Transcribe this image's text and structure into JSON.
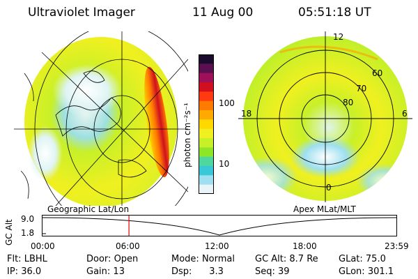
{
  "header": {
    "instrument": "Ultraviolet Imager",
    "date": "11 Aug 00",
    "time": "05:51:18 UT"
  },
  "colorbar": {
    "unit_label": "photon cm⁻²s⁻¹",
    "tick_100": "100",
    "tick_10": "10",
    "colors": [
      "#1a0a2e",
      "#5a1050",
      "#a0105a",
      "#d01020",
      "#ff3a10",
      "#ff7a00",
      "#ffaa00",
      "#ffd800",
      "#f0f020",
      "#c8f028",
      "#8ee628",
      "#4ed8a0",
      "#38c8d8",
      "#9ee0f0",
      "#e8f4f8"
    ]
  },
  "panels": {
    "left_label": "Geographic Lat/Lon",
    "right_label": "Apex MLat/MLT",
    "mlt": {
      "top": "12",
      "left": "18",
      "right": "6",
      "bottom": "0"
    },
    "mlat": {
      "l60": "60",
      "l70": "70",
      "l80": "80"
    }
  },
  "altitude_plot": {
    "ylabel": "GC Alt",
    "y_top": "9.0",
    "y_bottom": "1.8",
    "x_ticks": [
      "00:00",
      "06:00",
      "12:00",
      "18:00",
      "23:59"
    ],
    "marker_time_fraction": 0.2443
  },
  "status": {
    "filter_label": "Flt:",
    "filter_value": "LBHL",
    "door_label": "Door:",
    "door_value": "Open",
    "mode_label": "Mode:",
    "mode_value": "Normal",
    "gcalt_label": "GC Alt:",
    "gcalt_value": "8.7 Re",
    "glat_label": "GLat:",
    "glat_value": "75.0",
    "ip_label": "IP:",
    "ip_value": "36.0",
    "gain_label": "Gain:",
    "gain_value": "13",
    "dsp_label": "Dsp:",
    "dsp_value": "3.3",
    "seq_label": "Seq:",
    "seq_value": "39",
    "glon_label": "GLon:",
    "glon_value": "301.1"
  }
}
